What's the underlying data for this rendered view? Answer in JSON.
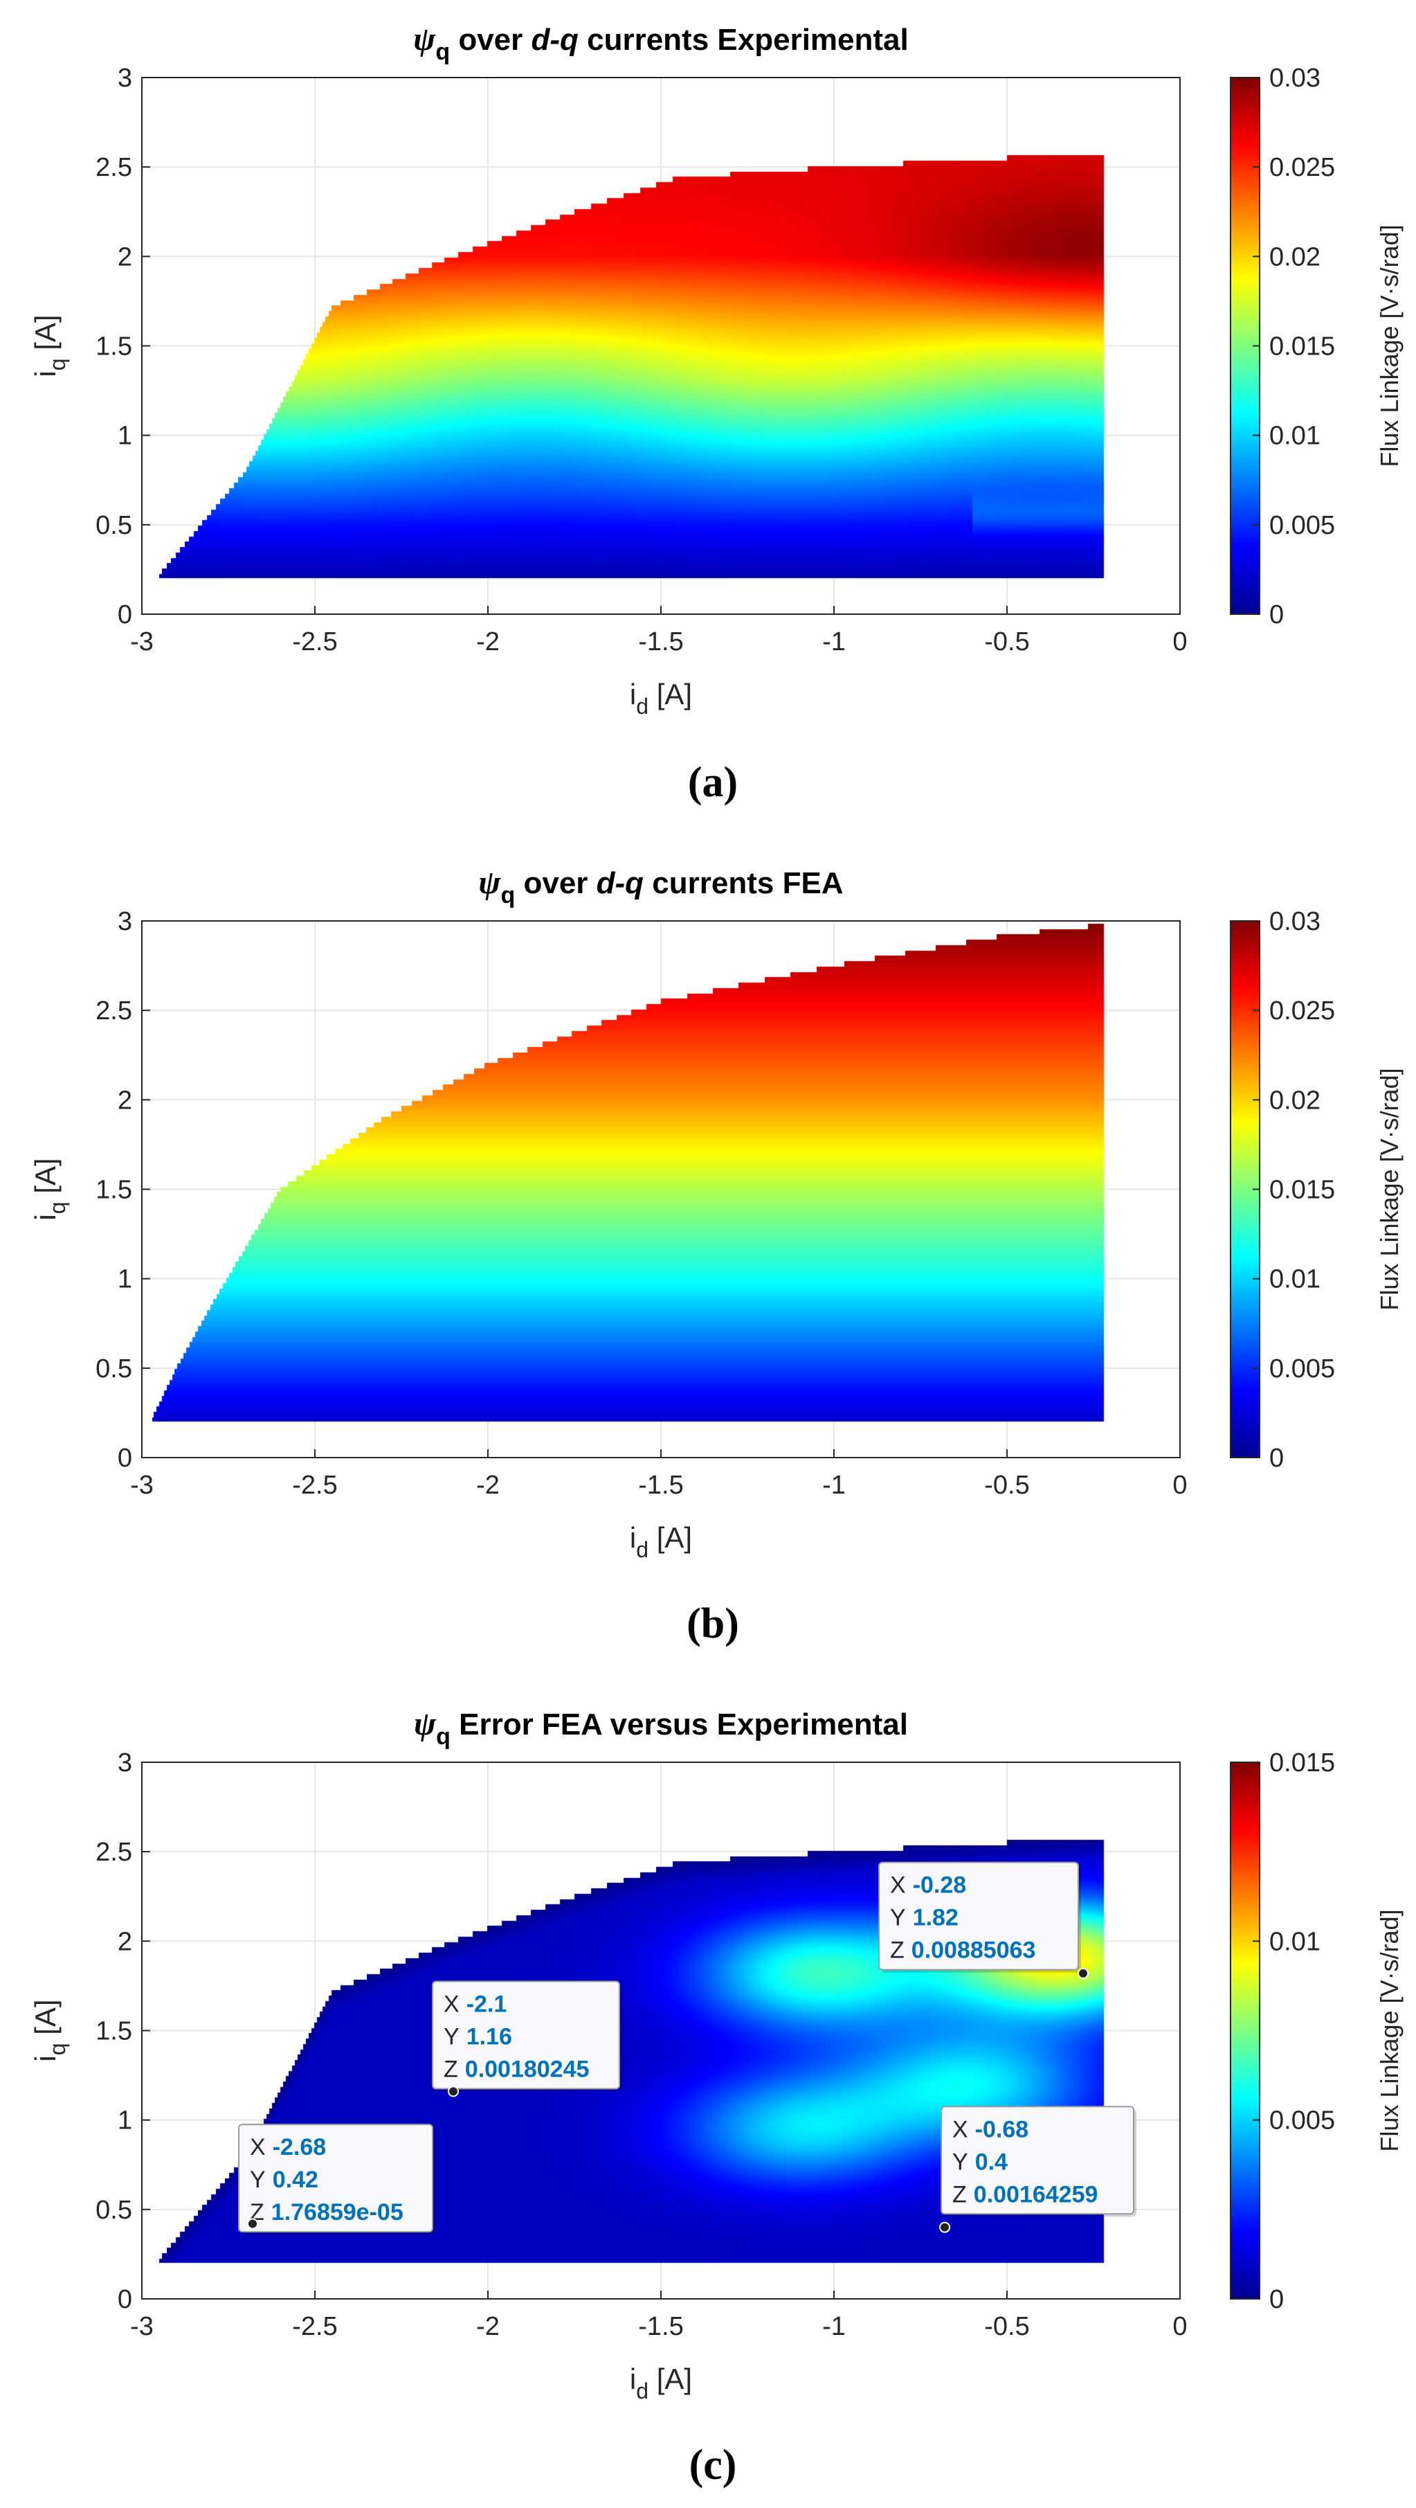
{
  "colors": {
    "jet": [
      "#00008f",
      "#0000ff",
      "#00ffff",
      "#ffff00",
      "#ff0000",
      "#800000"
    ],
    "datatip": "#0072bd"
  },
  "chart_data": [
    {
      "type": "heatmap",
      "title_psi": "ψ",
      "title_sub": "q",
      "title_over": " over ",
      "title_dq": "d-q",
      "title_rest": " currents Experimental",
      "xlabel_main": "i",
      "xlabel_sub": "d",
      "xlabel_unit": " [A]",
      "ylabel_main": "i",
      "ylabel_sub": "q",
      "ylabel_unit": " [A]",
      "xlim": [
        -3,
        0
      ],
      "ylim": [
        0,
        3
      ],
      "xticks": [
        "-3",
        "-2.5",
        "-2",
        "-1.5",
        "-1",
        "-0.5",
        "0"
      ],
      "yticks": [
        "0",
        "0.5",
        "1",
        "1.5",
        "2",
        "2.5",
        "3"
      ],
      "colorbar_label": "Flux Linkage [V·s/rad]",
      "clim": [
        0,
        0.03
      ],
      "colorbar_ticks": [
        "0",
        "0.005",
        "0.01",
        "0.015",
        "0.02",
        "0.025",
        "0.03"
      ],
      "caption": "(a)",
      "domain_upper_boundary": [
        [
          -2.95,
          0.22
        ],
        [
          -2.7,
          0.8
        ],
        [
          -2.45,
          1.72
        ],
        [
          -2.1,
          2.0
        ],
        [
          -1.75,
          2.25
        ],
        [
          -1.45,
          2.44
        ],
        [
          -1.0,
          2.5
        ],
        [
          -0.5,
          2.55
        ],
        [
          -0.22,
          2.58
        ]
      ],
      "i_q_min": 0.2,
      "i_d_max": -0.22,
      "value_trend_by_iq": [
        [
          0.2,
          0.001
        ],
        [
          0.5,
          0.004
        ],
        [
          0.8,
          0.008
        ],
        [
          1.0,
          0.011
        ],
        [
          1.3,
          0.016
        ],
        [
          1.6,
          0.02
        ],
        [
          2.0,
          0.026
        ],
        [
          2.5,
          0.027
        ]
      ],
      "peak": {
        "x": -0.25,
        "y": 2.0,
        "z": 0.03
      }
    },
    {
      "type": "heatmap",
      "title_psi": "ψ",
      "title_sub": "q",
      "title_over": " over ",
      "title_dq": "d-q",
      "title_rest": " currents FEA",
      "xlabel_main": "i",
      "xlabel_sub": "d",
      "xlabel_unit": " [A]",
      "ylabel_main": "i",
      "ylabel_sub": "q",
      "ylabel_unit": " [A]",
      "xlim": [
        -3,
        0
      ],
      "ylim": [
        0,
        3
      ],
      "xticks": [
        "-3",
        "-2.5",
        "-2",
        "-1.5",
        "-1",
        "-0.5",
        "0"
      ],
      "yticks": [
        "0",
        "0.5",
        "1",
        "1.5",
        "2",
        "2.5",
        "3"
      ],
      "colorbar_label": "Flux Linkage [V·s/rad]",
      "clim": [
        0,
        0.03
      ],
      "colorbar_ticks": [
        "0",
        "0.005",
        "0.01",
        "0.015",
        "0.02",
        "0.025",
        "0.03"
      ],
      "caption": "(b)",
      "domain_upper_boundary": [
        [
          -2.97,
          0.22
        ],
        [
          -2.9,
          0.5
        ],
        [
          -2.8,
          0.85
        ],
        [
          -2.6,
          1.5
        ],
        [
          -2.3,
          1.9
        ],
        [
          -2.0,
          2.2
        ],
        [
          -1.5,
          2.55
        ],
        [
          -1.0,
          2.75
        ],
        [
          -0.5,
          2.92
        ],
        [
          -0.22,
          2.98
        ]
      ],
      "i_q_min": 0.2,
      "i_d_max": -0.22,
      "value_trend_by_iq": [
        [
          0.2,
          0.002
        ],
        [
          0.5,
          0.0055
        ],
        [
          1.0,
          0.0115
        ],
        [
          1.5,
          0.0165
        ],
        [
          2.0,
          0.022
        ],
        [
          2.5,
          0.026
        ],
        [
          3.0,
          0.03
        ]
      ]
    },
    {
      "type": "heatmap",
      "title_psi": "ψ",
      "title_sub": "q",
      "title_over": " ",
      "title_dq": "",
      "title_rest": "Error FEA versus Experimental",
      "xlabel_main": "i",
      "xlabel_sub": "d",
      "xlabel_unit": " [A]",
      "ylabel_main": "i",
      "ylabel_sub": "q",
      "ylabel_unit": " [A]",
      "xlim": [
        -3,
        0
      ],
      "ylim": [
        0,
        3
      ],
      "xticks": [
        "-3",
        "-2.5",
        "-2",
        "-1.5",
        "-1",
        "-0.5",
        "0"
      ],
      "yticks": [
        "0",
        "0.5",
        "1",
        "1.5",
        "2",
        "2.5",
        "3"
      ],
      "colorbar_label": "Flux Linkage [V·s/rad]",
      "clim": [
        0,
        0.015
      ],
      "colorbar_ticks": [
        "0",
        "0.005",
        "0.01",
        "0.015"
      ],
      "caption": "(c)",
      "domain_upper_boundary": [
        [
          -2.95,
          0.22
        ],
        [
          -2.7,
          0.8
        ],
        [
          -2.45,
          1.72
        ],
        [
          -2.1,
          2.0
        ],
        [
          -1.75,
          2.25
        ],
        [
          -1.45,
          2.44
        ],
        [
          -1.0,
          2.5
        ],
        [
          -0.5,
          2.55
        ],
        [
          -0.22,
          2.58
        ]
      ],
      "i_q_min": 0.2,
      "i_d_max": -0.22,
      "error_hotspots": [
        {
          "x": -1.05,
          "y": 1.82,
          "z": 0.0055
        },
        {
          "x": -0.35,
          "y": 1.9,
          "z": 0.0088
        },
        {
          "x": -0.6,
          "y": 1.2,
          "z": 0.0045
        },
        {
          "x": -1.1,
          "y": 0.95,
          "z": 0.0042
        }
      ],
      "datatips": [
        {
          "x": -2.68,
          "y": 0.42,
          "x_label": "X",
          "y_label": "Y",
          "z_label": "Z",
          "x_text": "-2.68",
          "y_text": "0.42",
          "z_text": "1.76859e-05"
        },
        {
          "x": -2.1,
          "y": 1.16,
          "x_label": "X",
          "y_label": "Y",
          "z_label": "Z",
          "x_text": "-2.1",
          "y_text": "1.16",
          "z_text": "0.00180245"
        },
        {
          "x": -0.28,
          "y": 1.82,
          "x_label": "X",
          "y_label": "Y",
          "z_label": "Z",
          "x_text": "-0.28",
          "y_text": "1.82",
          "z_text": "0.00885063"
        },
        {
          "x": -0.68,
          "y": 0.4,
          "x_label": "X",
          "y_label": "Y",
          "z_label": "Z",
          "x_text": "-0.68",
          "y_text": "0.4",
          "z_text": "0.00164259"
        }
      ]
    }
  ]
}
